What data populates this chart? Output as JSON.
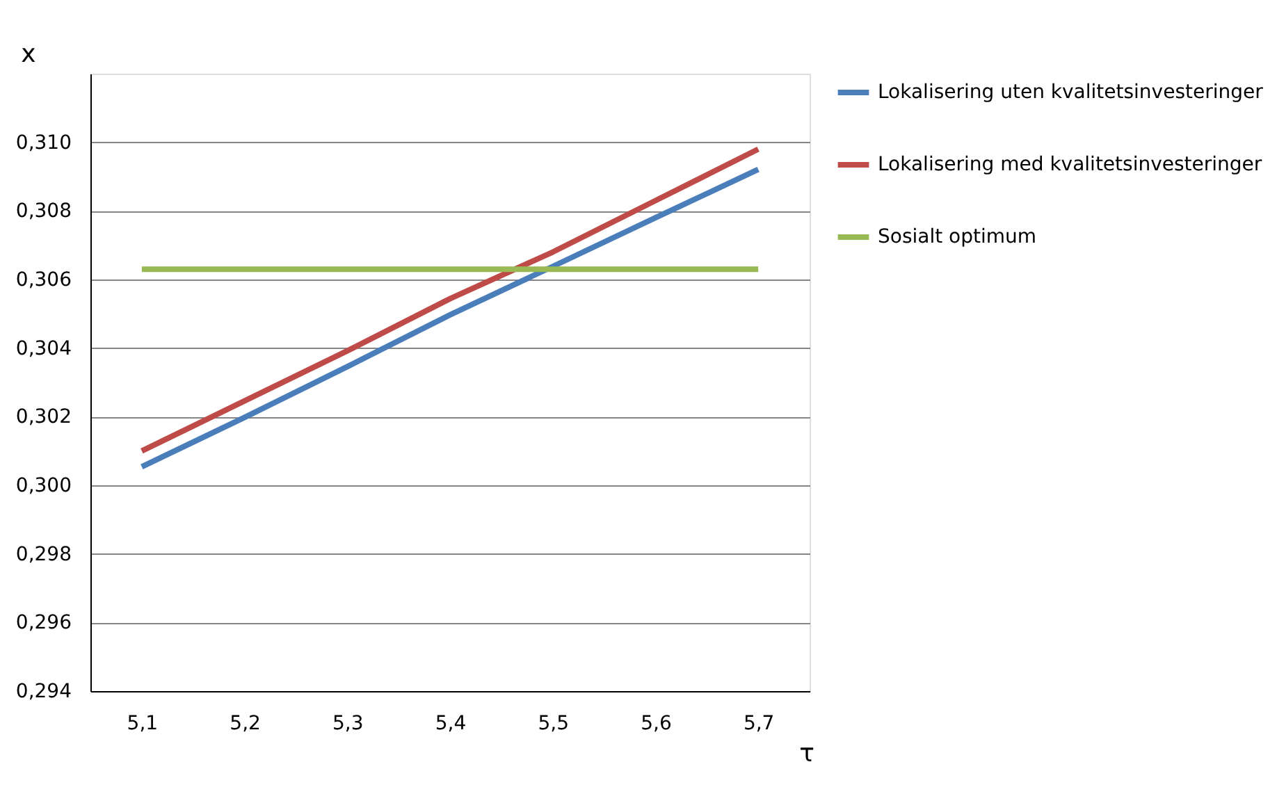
{
  "chart_data": {
    "type": "line",
    "xlabel": "τ",
    "ylabel": "x",
    "categories": [
      "5,1",
      "5,2",
      "5,3",
      "5,4",
      "5,5",
      "5,6",
      "5,7"
    ],
    "series": [
      {
        "name": "Lokalisering uten kvalitetsinvesteringer",
        "color": "#4a7ebb",
        "values": [
          0.30054,
          0.30198,
          0.30346,
          0.30497,
          0.30638,
          0.3078,
          0.30921
        ]
      },
      {
        "name": "Lokalisering med kvalitetsinvesteringer",
        "color": "#be4b48",
        "values": [
          0.301,
          0.30246,
          0.30392,
          0.30544,
          0.3068,
          0.3083,
          0.3098
        ]
      },
      {
        "name": "Sosialt optimum",
        "color": "#98b954",
        "values": [
          0.3063,
          0.3063,
          0.3063,
          0.3063,
          0.3063,
          0.3063,
          0.3063
        ]
      }
    ],
    "ylim": [
      0.294,
      0.312
    ],
    "yticks": [
      {
        "value": 0.294,
        "label": "0,294"
      },
      {
        "value": 0.296,
        "label": "0,296"
      },
      {
        "value": 0.298,
        "label": "0,298"
      },
      {
        "value": 0.3,
        "label": "0,300"
      },
      {
        "value": 0.302,
        "label": "0,302"
      },
      {
        "value": 0.304,
        "label": "0,304"
      },
      {
        "value": 0.306,
        "label": "0,306"
      },
      {
        "value": 0.308,
        "label": "0,308"
      },
      {
        "value": 0.31,
        "label": "0,310"
      }
    ],
    "grid": "y",
    "legend": "right",
    "marker": "none",
    "line_style": "solid"
  }
}
